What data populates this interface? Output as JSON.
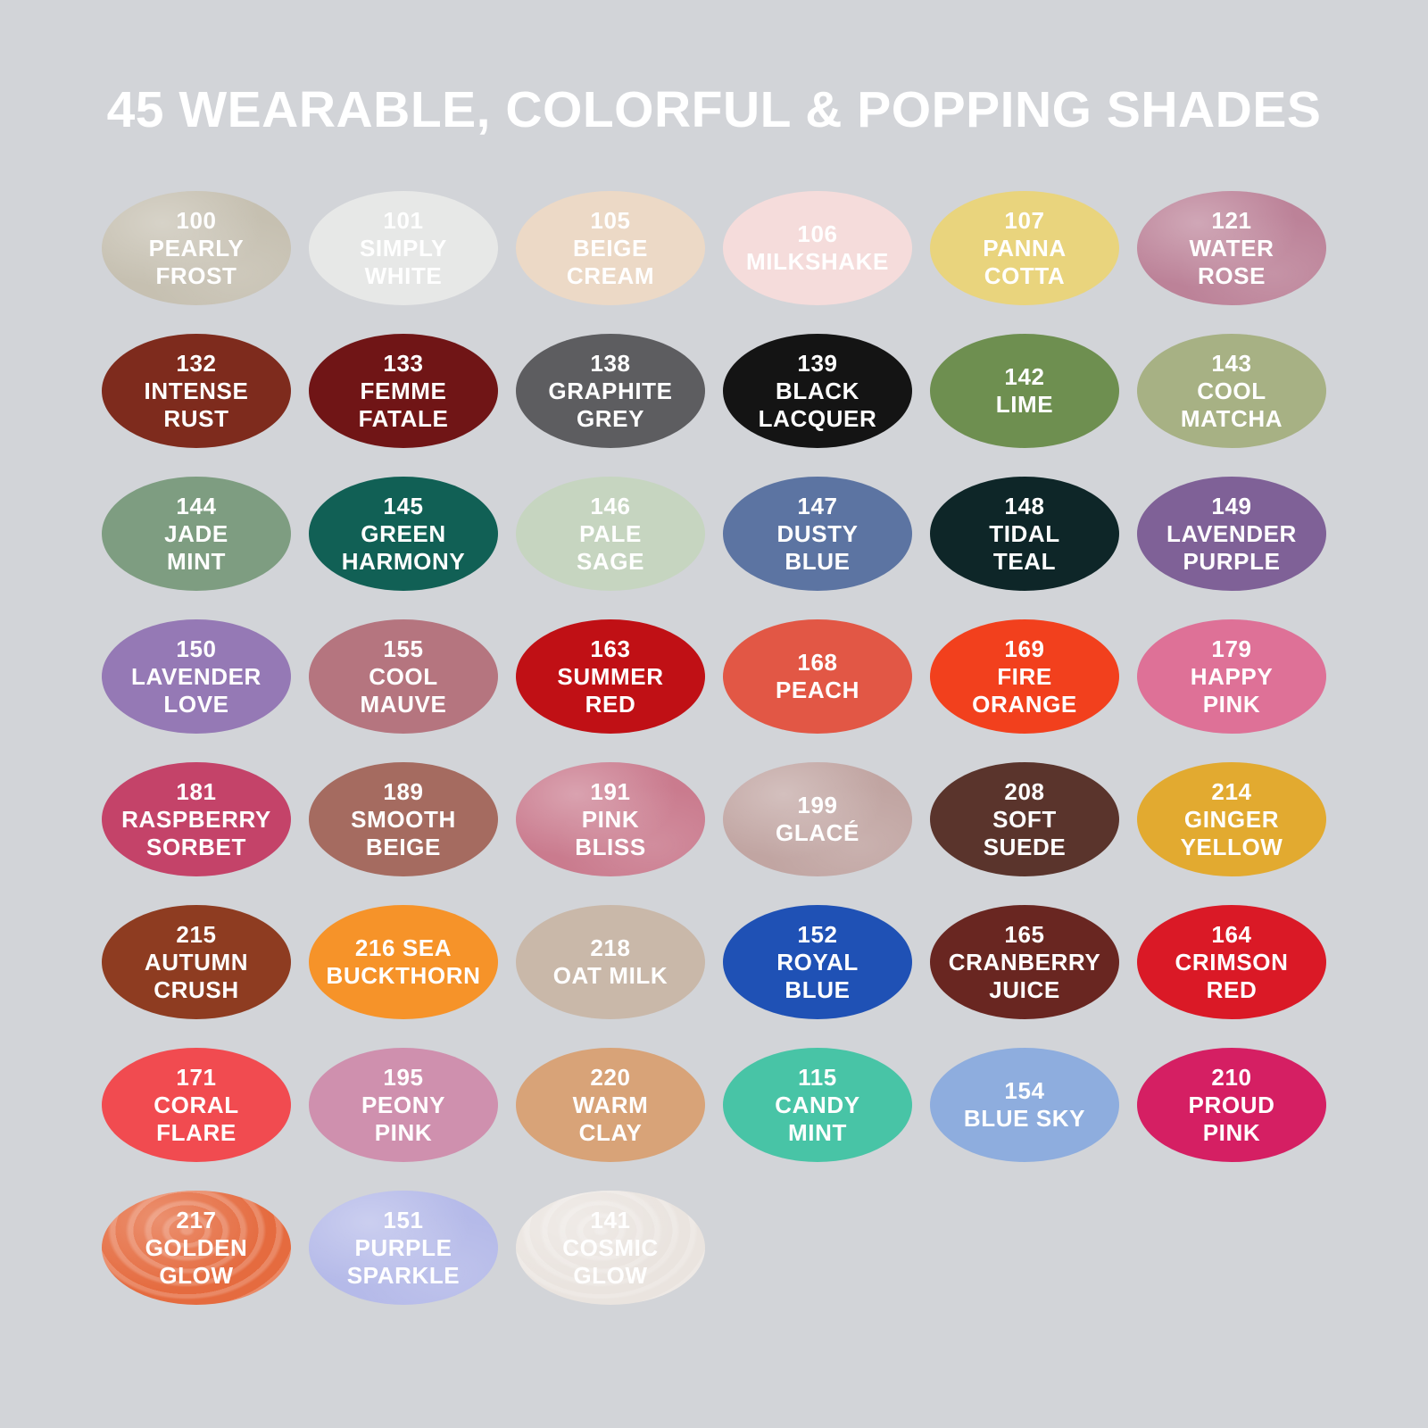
{
  "title": "45 WEARABLE, COLORFUL & POPPING SHADES",
  "colors": {
    "background": "#d2d4d8",
    "title_text": "#ffffff",
    "swatch_text": "#ffffff"
  },
  "rows": [
    [
      {
        "number": "100",
        "name": "PEARLY FROST",
        "lines": [
          "100",
          "PEARLY",
          "FROST"
        ],
        "color": "#c6c0b1",
        "finish": "shimmer"
      },
      {
        "number": "101",
        "name": "SIMPLY WHITE",
        "lines": [
          "101",
          "SIMPLY",
          "WHITE"
        ],
        "color": "#e7e8e7",
        "finish": "cream"
      },
      {
        "number": "105",
        "name": "BEIGE CREAM",
        "lines": [
          "105",
          "BEIGE",
          "CREAM"
        ],
        "color": "#ecd9c6",
        "finish": "cream"
      },
      {
        "number": "106",
        "name": "MILKSHAKE",
        "lines": [
          "106",
          "MILKSHAKE"
        ],
        "color": "#f5dcdb",
        "finish": "cream"
      },
      {
        "number": "107",
        "name": "PANNA COTTA",
        "lines": [
          "107",
          "PANNA",
          "COTTA"
        ],
        "color": "#e9d47d",
        "finish": "cream"
      },
      {
        "number": "121",
        "name": "WATER ROSE",
        "lines": [
          "121",
          "WATER",
          "ROSE"
        ],
        "color": "#bc8298",
        "finish": "shimmer"
      }
    ],
    [
      {
        "number": "132",
        "name": "INTENSE RUST",
        "lines": [
          "132",
          "INTENSE",
          "RUST"
        ],
        "color": "#7e2b1d",
        "finish": "cream"
      },
      {
        "number": "133",
        "name": "FEMME FATALE",
        "lines": [
          "133",
          "FEMME",
          "FATALE"
        ],
        "color": "#701516",
        "finish": "cream"
      },
      {
        "number": "138",
        "name": "GRAPHITE GREY",
        "lines": [
          "138",
          "GRAPHITE",
          "GREY"
        ],
        "color": "#5d5d60",
        "finish": "cream"
      },
      {
        "number": "139",
        "name": "BLACK LACQUER",
        "lines": [
          "139",
          "BLACK",
          "LACQUER"
        ],
        "color": "#141414",
        "finish": "cream"
      },
      {
        "number": "142",
        "name": "LIME",
        "lines": [
          "142",
          "LIME"
        ],
        "color": "#6e8f50",
        "finish": "cream"
      },
      {
        "number": "143",
        "name": "COOL MATCHA",
        "lines": [
          "143",
          "COOL",
          "MATCHA"
        ],
        "color": "#a7b184",
        "finish": "cream"
      }
    ],
    [
      {
        "number": "144",
        "name": "JADE MINT",
        "lines": [
          "144",
          "JADE",
          "MINT"
        ],
        "color": "#7e9d81",
        "finish": "cream"
      },
      {
        "number": "145",
        "name": "GREEN HARMONY",
        "lines": [
          "145",
          "GREEN",
          "HARMONY"
        ],
        "color": "#116055",
        "finish": "cream"
      },
      {
        "number": "146",
        "name": "PALE SAGE",
        "lines": [
          "146",
          "PALE",
          "SAGE"
        ],
        "color": "#c6d5c0",
        "finish": "cream"
      },
      {
        "number": "147",
        "name": "DUSTY BLUE",
        "lines": [
          "147",
          "DUSTY",
          "BLUE"
        ],
        "color": "#5c74a2",
        "finish": "cream"
      },
      {
        "number": "148",
        "name": "TIDAL TEAL",
        "lines": [
          "148",
          "TIDAL",
          "TEAL"
        ],
        "color": "#0e2628",
        "finish": "cream"
      },
      {
        "number": "149",
        "name": "LAVENDER PURPLE",
        "lines": [
          "149",
          "LAVENDER",
          "PURPLE"
        ],
        "color": "#7f6197",
        "finish": "cream"
      }
    ],
    [
      {
        "number": "150",
        "name": "LAVENDER LOVE",
        "lines": [
          "150",
          "LAVENDER",
          "LOVE"
        ],
        "color": "#9579b5",
        "finish": "cream"
      },
      {
        "number": "155",
        "name": "COOL MAUVE",
        "lines": [
          "155",
          "COOL",
          "MAUVE"
        ],
        "color": "#b5757f",
        "finish": "cream"
      },
      {
        "number": "163",
        "name": "SUMMER RED",
        "lines": [
          "163",
          "SUMMER",
          "RED"
        ],
        "color": "#c01015",
        "finish": "cream"
      },
      {
        "number": "168",
        "name": "PEACH",
        "lines": [
          "168",
          "PEACH"
        ],
        "color": "#e25745",
        "finish": "cream"
      },
      {
        "number": "169",
        "name": "FIRE ORANGE",
        "lines": [
          "169",
          "FIRE",
          "ORANGE"
        ],
        "color": "#f2401d",
        "finish": "cream"
      },
      {
        "number": "179",
        "name": "HAPPY PINK",
        "lines": [
          "179",
          "HAPPY",
          "PINK"
        ],
        "color": "#de7197",
        "finish": "cream"
      }
    ],
    [
      {
        "number": "181",
        "name": "RASPBERRY SORBET",
        "lines": [
          "181",
          "RASPBERRY",
          "SORBET"
        ],
        "color": "#c44369",
        "finish": "cream"
      },
      {
        "number": "189",
        "name": "SMOOTH BEIGE",
        "lines": [
          "189",
          "SMOOTH",
          "BEIGE"
        ],
        "color": "#a56b60",
        "finish": "cream"
      },
      {
        "number": "191",
        "name": "PINK BLISS",
        "lines": [
          "191",
          "PINK",
          "BLISS"
        ],
        "color": "#ca7b8e",
        "finish": "shimmer"
      },
      {
        "number": "199",
        "name": "GLACÉ",
        "lines": [
          "199",
          "GLACÉ"
        ],
        "color": "#c1a5a2",
        "finish": "shimmer"
      },
      {
        "number": "208",
        "name": "SOFT SUEDE",
        "lines": [
          "208",
          "SOFT",
          "SUEDE"
        ],
        "color": "#5a342c",
        "finish": "cream"
      },
      {
        "number": "214",
        "name": "GINGER YELLOW",
        "lines": [
          "214",
          "GINGER",
          "YELLOW"
        ],
        "color": "#e2aa30",
        "finish": "cream"
      }
    ],
    [
      {
        "number": "215",
        "name": "AUTUMN CRUSH",
        "lines": [
          "215",
          "AUTUMN",
          "CRUSH"
        ],
        "color": "#8e3c21",
        "finish": "cream"
      },
      {
        "number": "216",
        "name": "SEA BUCKTHORN",
        "lines": [
          "216 SEA",
          "BUCKTHORN"
        ],
        "color": "#f69329",
        "finish": "cream"
      },
      {
        "number": "218",
        "name": "OAT MILK",
        "lines": [
          "218",
          "OAT MILK"
        ],
        "color": "#c9b8a9",
        "finish": "cream"
      },
      {
        "number": "152",
        "name": "ROYAL BLUE",
        "lines": [
          "152",
          "ROYAL",
          "BLUE"
        ],
        "color": "#1f51b5",
        "finish": "cream"
      },
      {
        "number": "165",
        "name": "CRANBERRY JUICE",
        "lines": [
          "165",
          "CRANBERRY",
          "JUICE"
        ],
        "color": "#692621",
        "finish": "cream"
      },
      {
        "number": "164",
        "name": "CRIMSON RED",
        "lines": [
          "164",
          "CRIMSON",
          "RED"
        ],
        "color": "#da1926",
        "finish": "cream"
      }
    ],
    [
      {
        "number": "171",
        "name": "CORAL FLARE",
        "lines": [
          "171",
          "CORAL",
          "FLARE"
        ],
        "color": "#f14b50",
        "finish": "cream"
      },
      {
        "number": "195",
        "name": "PEONY PINK",
        "lines": [
          "195",
          "PEONY",
          "PINK"
        ],
        "color": "#cf90ae",
        "finish": "cream"
      },
      {
        "number": "220",
        "name": "WARM CLAY",
        "lines": [
          "220",
          "WARM",
          "CLAY"
        ],
        "color": "#d8a378",
        "finish": "cream"
      },
      {
        "number": "115",
        "name": "CANDY MINT",
        "lines": [
          "115",
          "CANDY",
          "MINT"
        ],
        "color": "#48c4a6",
        "finish": "cream"
      },
      {
        "number": "154",
        "name": "BLUE SKY",
        "lines": [
          "154",
          "BLUE SKY"
        ],
        "color": "#8eadde",
        "finish": "cream"
      },
      {
        "number": "210",
        "name": "PROUD PINK",
        "lines": [
          "210",
          "PROUD",
          "PINK"
        ],
        "color": "#d51f63",
        "finish": "cream"
      }
    ],
    [
      {
        "number": "217",
        "name": "GOLDEN GLOW",
        "lines": [
          "217",
          "GOLDEN",
          "GLOW"
        ],
        "color": "#e56b3f",
        "finish": "swirl"
      },
      {
        "number": "151",
        "name": "PURPLE SPARKLE",
        "lines": [
          "151",
          "PURPLE",
          "SPARKLE"
        ],
        "color": "#b5bae9",
        "finish": "shimmer"
      },
      {
        "number": "141",
        "name": "COSMIC GLOW",
        "lines": [
          "141",
          "COSMIC",
          "GLOW"
        ],
        "color": "#eae4df",
        "finish": "swirl"
      }
    ]
  ]
}
